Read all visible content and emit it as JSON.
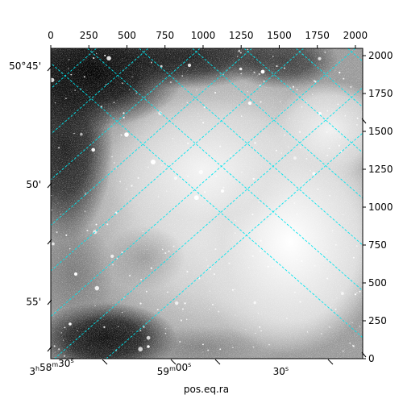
{
  "chart_data": {
    "type": "image",
    "xlabel": "pos.eq.ra",
    "ylabel": "",
    "pixel_axes": {
      "x_ticks": [
        0,
        250,
        500,
        750,
        1000,
        1250,
        1500,
        1750,
        2000
      ],
      "y_ticks": [
        0,
        250,
        500,
        750,
        1000,
        1250,
        1500,
        1750,
        2000
      ],
      "xlim": [
        0,
        2048
      ],
      "ylim": [
        0,
        2048
      ]
    },
    "ra_ticks": [
      {
        "h": "3",
        "hs": "h",
        "m": "58",
        "ms": "m",
        "s": "30",
        "ss": "s",
        "pix_x": -110
      },
      {
        "h": "",
        "hs": "",
        "m": "59",
        "ms": "m",
        "s": "00",
        "ss": "s",
        "pix_x": 810
      },
      {
        "h": "",
        "hs": "",
        "m": "",
        "ms": "",
        "s": "30",
        "ss": "s",
        "pix_x": 1510
      }
    ],
    "dec_ticks": [
      {
        "label": "50°45'",
        "pix_y": 1930
      },
      {
        "label": "50'",
        "pix_y": 1150
      },
      {
        "label": "55'",
        "pix_y": 375
      }
    ],
    "grid": true,
    "grid_color": "#00e5ee",
    "image_colormap": "gray"
  }
}
